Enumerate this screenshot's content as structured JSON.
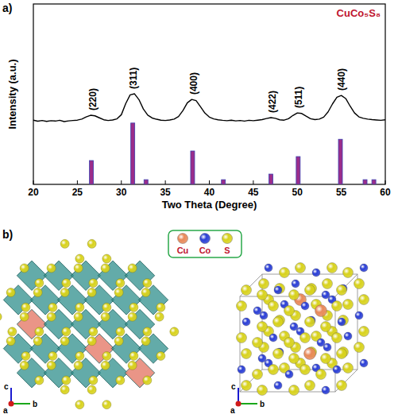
{
  "chart_data": {
    "type": "line",
    "title": "CuCo₅S₈",
    "x_label": "Two Theta (Degree)",
    "y_label": "Intensity (a.u.)",
    "xlim": [
      20,
      60
    ],
    "xticks": [
      20,
      25,
      30,
      35,
      40,
      45,
      50,
      55,
      60
    ],
    "ylim": [
      0,
      100
    ],
    "yticks": [],
    "tick_labels": "x",
    "grid": false,
    "series": [
      {
        "type": "line",
        "color": "#000000",
        "x": [
          20,
          20.5,
          21,
          21.5,
          22,
          22.5,
          23,
          23.5,
          24,
          24.5,
          25,
          25.5,
          26,
          26.5,
          27,
          27.5,
          28,
          28.5,
          29,
          29.5,
          30,
          30.5,
          31,
          31.5,
          32,
          32.5,
          33,
          33.5,
          34,
          34.5,
          35,
          35.5,
          36,
          36.5,
          37,
          37.5,
          38,
          38.5,
          39,
          39.5,
          40,
          40.5,
          41,
          41.5,
          42,
          42.5,
          43,
          43.5,
          44,
          44.5,
          45,
          45.5,
          46,
          46.5,
          47,
          47.5,
          48,
          48.5,
          49,
          49.5,
          50,
          50.5,
          51,
          51.5,
          52,
          52.5,
          53,
          53.5,
          54,
          54.5,
          55,
          55.5,
          56,
          56.5,
          57,
          57.5,
          58,
          58.5,
          59,
          59.5,
          60
        ],
        "values": [
          35.6,
          35.0,
          35.4,
          34.9,
          35.3,
          35.1,
          35.5,
          34.8,
          35.2,
          35.4,
          35.6,
          36.2,
          37.4,
          38.3,
          38.0,
          36.9,
          35.8,
          35.4,
          35.7,
          36.3,
          38.6,
          44.8,
          49.6,
          50.2,
          47.0,
          41.8,
          38.4,
          36.8,
          36.1,
          35.6,
          35.4,
          35.7,
          36.2,
          37.6,
          40.9,
          45.2,
          47.1,
          46.4,
          43.0,
          39.5,
          37.3,
          36.3,
          35.8,
          35.5,
          35.3,
          35.6,
          35.2,
          35.4,
          35.1,
          35.5,
          35.3,
          35.6,
          35.9,
          36.5,
          37.0,
          36.6,
          35.8,
          35.6,
          36.4,
          38.2,
          39.6,
          39.3,
          37.8,
          36.4,
          35.9,
          36.2,
          37.3,
          40.2,
          44.6,
          48.3,
          49.3,
          47.6,
          43.4,
          39.6,
          37.4,
          36.6,
          36.2,
          35.9,
          35.7,
          35.5,
          35.8
        ]
      },
      {
        "type": "bar",
        "color": "#9b2d8a",
        "x": [
          26.6,
          31.3,
          32.8,
          38.1,
          41.6,
          47.0,
          50.1,
          54.9,
          57.7,
          58.7
        ],
        "values": [
          13.2,
          34.0,
          2.6,
          18.5,
          2.6,
          5.7,
          15.4,
          25.0,
          2.6,
          2.6
        ]
      }
    ],
    "annotations": [
      {
        "text": "(220)",
        "x": 26.7
      },
      {
        "text": "(311)",
        "x": 31.3
      },
      {
        "text": "(400)",
        "x": 38.2
      },
      {
        "text": "(422)",
        "x": 47.1
      },
      {
        "text": "(511)",
        "x": 50.1
      },
      {
        "text": "(440)",
        "x": 55.0
      }
    ]
  },
  "panel_labels": [
    "a)",
    "b)"
  ],
  "structure": {
    "legend": [
      {
        "label": "Cu",
        "color": "#e8895a"
      },
      {
        "label": "Co",
        "color": "#2b3fd6"
      },
      {
        "label": "S",
        "color": "#d8d21c"
      }
    ],
    "axis_labels": [
      "c",
      "b",
      "a"
    ]
  }
}
